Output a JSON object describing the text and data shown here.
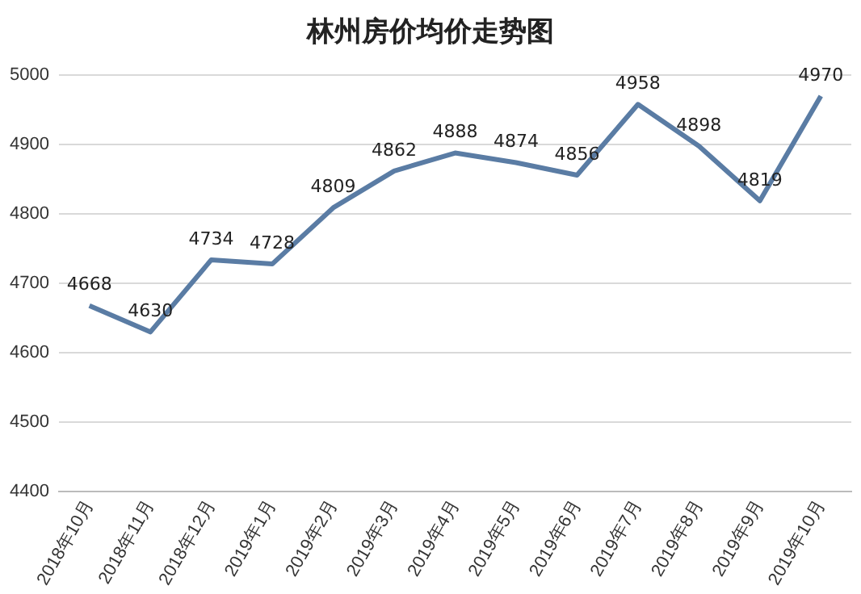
{
  "chart_data": {
    "type": "line",
    "title": "林州房价均价走势图",
    "categories": [
      "2018年10月",
      "2018年11月",
      "2018年12月",
      "2019年1月",
      "2019年2月",
      "2019年3月",
      "2019年4月",
      "2019年5月",
      "2019年6月",
      "2019年7月",
      "2019年8月",
      "2019年9月",
      "2019年10月"
    ],
    "series": [
      {
        "color": "#5a7ca4",
        "values": [
          4668,
          4630,
          4734,
          4728,
          4809,
          4862,
          4888,
          4874,
          4856,
          4958,
          4898,
          4819,
          4970
        ]
      }
    ],
    "ylim": [
      4400,
      5000
    ],
    "yticks": [
      4400,
      4500,
      4600,
      4700,
      4800,
      4900,
      5000
    ],
    "grid": "y",
    "legend": false,
    "marker": "none",
    "line_style": "solid",
    "data_labels": true
  }
}
